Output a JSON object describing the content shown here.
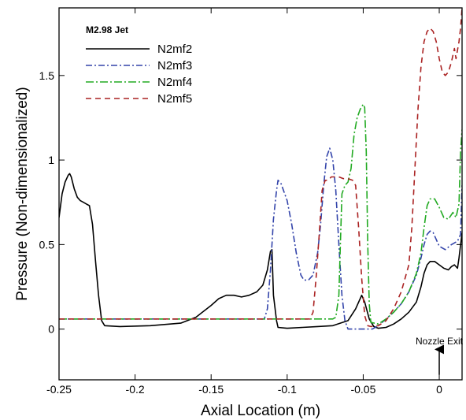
{
  "chart_data": {
    "type": "line",
    "title": "",
    "xlabel": "Axial Location (m)",
    "ylabel": "Pressure (Non-dimensionalized)",
    "xlim": [
      -0.25,
      0.015
    ],
    "ylim": [
      -0.3,
      1.9
    ],
    "grid": false,
    "legend_title": "M2.98 Jet",
    "legend_position": "top-left",
    "x_ticks": [
      {
        "v": -0.25,
        "label": "-0.25"
      },
      {
        "v": -0.2,
        "label": "-0.2"
      },
      {
        "v": -0.15,
        "label": "-0.15"
      },
      {
        "v": -0.1,
        "label": "-0.1"
      },
      {
        "v": -0.05,
        "label": "-0.05"
      },
      {
        "v": 0,
        "label": "0"
      }
    ],
    "y_ticks": [
      {
        "v": 0,
        "label": "0"
      },
      {
        "v": 0.5,
        "label": "0.5"
      },
      {
        "v": 1,
        "label": "1"
      },
      {
        "v": 1.5,
        "label": "1.5"
      }
    ],
    "annotation": {
      "text": "Nozzle Exit",
      "x": 0,
      "y_text": -0.09,
      "arrow_from_y": -0.27,
      "arrow_to_y": -0.12
    },
    "series": [
      {
        "name": "N2mf2",
        "color": "#000000",
        "dash": "",
        "points": [
          [
            -0.25,
            0.66
          ],
          [
            -0.248,
            0.8
          ],
          [
            -0.246,
            0.87
          ],
          [
            -0.244,
            0.91
          ],
          [
            -0.243,
            0.92
          ],
          [
            -0.242,
            0.9
          ],
          [
            -0.24,
            0.83
          ],
          [
            -0.238,
            0.78
          ],
          [
            -0.236,
            0.76
          ],
          [
            -0.234,
            0.75
          ],
          [
            -0.232,
            0.74
          ],
          [
            -0.23,
            0.73
          ],
          [
            -0.228,
            0.62
          ],
          [
            -0.226,
            0.4
          ],
          [
            -0.224,
            0.2
          ],
          [
            -0.222,
            0.05
          ],
          [
            -0.22,
            0.02
          ],
          [
            -0.21,
            0.015
          ],
          [
            -0.19,
            0.02
          ],
          [
            -0.17,
            0.035
          ],
          [
            -0.16,
            0.07
          ],
          [
            -0.15,
            0.14
          ],
          [
            -0.145,
            0.18
          ],
          [
            -0.14,
            0.2
          ],
          [
            -0.135,
            0.2
          ],
          [
            -0.13,
            0.19
          ],
          [
            -0.125,
            0.2
          ],
          [
            -0.12,
            0.22
          ],
          [
            -0.116,
            0.26
          ],
          [
            -0.113,
            0.35
          ],
          [
            -0.111,
            0.46
          ],
          [
            -0.11,
            0.47
          ],
          [
            -0.109,
            0.2
          ],
          [
            -0.107,
            0.05
          ],
          [
            -0.106,
            0.01
          ],
          [
            -0.1,
            0.005
          ],
          [
            -0.09,
            0.01
          ],
          [
            -0.08,
            0.015
          ],
          [
            -0.07,
            0.02
          ],
          [
            -0.06,
            0.05
          ],
          [
            -0.055,
            0.12
          ],
          [
            -0.051,
            0.2
          ],
          [
            -0.049,
            0.16
          ],
          [
            -0.046,
            0.06
          ],
          [
            -0.043,
            0.015
          ],
          [
            -0.04,
            0.005
          ],
          [
            -0.035,
            0.01
          ],
          [
            -0.03,
            0.03
          ],
          [
            -0.025,
            0.06
          ],
          [
            -0.02,
            0.1
          ],
          [
            -0.015,
            0.16
          ],
          [
            -0.012,
            0.25
          ],
          [
            -0.01,
            0.33
          ],
          [
            -0.008,
            0.38
          ],
          [
            -0.006,
            0.4
          ],
          [
            -0.003,
            0.4
          ],
          [
            0,
            0.38
          ],
          [
            0.003,
            0.36
          ],
          [
            0.006,
            0.35
          ],
          [
            0.008,
            0.37
          ],
          [
            0.01,
            0.38
          ],
          [
            0.012,
            0.36
          ],
          [
            0.013,
            0.42
          ],
          [
            0.015,
            0.57
          ]
        ]
      },
      {
        "name": "N2mf3",
        "color": "#3344aa",
        "dash": "8,3,2,3",
        "points": [
          [
            -0.25,
            0.06
          ],
          [
            -0.115,
            0.06
          ],
          [
            -0.113,
            0.12
          ],
          [
            -0.111,
            0.35
          ],
          [
            -0.109,
            0.65
          ],
          [
            -0.107,
            0.82
          ],
          [
            -0.106,
            0.88
          ],
          [
            -0.104,
            0.86
          ],
          [
            -0.1,
            0.76
          ],
          [
            -0.097,
            0.62
          ],
          [
            -0.094,
            0.45
          ],
          [
            -0.091,
            0.32
          ],
          [
            -0.089,
            0.29
          ],
          [
            -0.086,
            0.29
          ],
          [
            -0.083,
            0.32
          ],
          [
            -0.08,
            0.45
          ],
          [
            -0.078,
            0.62
          ],
          [
            -0.076,
            0.85
          ],
          [
            -0.074,
            1.02
          ],
          [
            -0.072,
            1.07
          ],
          [
            -0.07,
            1.0
          ],
          [
            -0.068,
            0.82
          ],
          [
            -0.066,
            0.5
          ],
          [
            -0.064,
            0.2
          ],
          [
            -0.062,
            0.05
          ],
          [
            -0.06,
            0.0
          ],
          [
            -0.05,
            0.0
          ],
          [
            -0.044,
            0.0
          ],
          [
            -0.04,
            0.02
          ],
          [
            -0.035,
            0.06
          ],
          [
            -0.03,
            0.1
          ],
          [
            -0.025,
            0.15
          ],
          [
            -0.02,
            0.22
          ],
          [
            -0.015,
            0.32
          ],
          [
            -0.012,
            0.42
          ],
          [
            -0.01,
            0.5
          ],
          [
            -0.008,
            0.56
          ],
          [
            -0.006,
            0.58
          ],
          [
            -0.004,
            0.57
          ],
          [
            -0.002,
            0.53
          ],
          [
            0,
            0.49
          ],
          [
            0.004,
            0.47
          ],
          [
            0.008,
            0.5
          ],
          [
            0.012,
            0.52
          ],
          [
            0.014,
            0.56
          ],
          [
            0.015,
            0.85
          ]
        ]
      },
      {
        "name": "N2mf4",
        "color": "#22aa22",
        "dash": "10,3,2,3",
        "points": [
          [
            -0.25,
            0.06
          ],
          [
            -0.07,
            0.06
          ],
          [
            -0.068,
            0.07
          ],
          [
            -0.066,
            0.2
          ],
          [
            -0.065,
            0.5
          ],
          [
            -0.064,
            0.8
          ],
          [
            -0.062,
            0.85
          ],
          [
            -0.06,
            0.87
          ],
          [
            -0.058,
            0.95
          ],
          [
            -0.056,
            1.15
          ],
          [
            -0.054,
            1.25
          ],
          [
            -0.052,
            1.3
          ],
          [
            -0.05,
            1.33
          ],
          [
            -0.049,
            1.31
          ],
          [
            -0.048,
            1.05
          ],
          [
            -0.047,
            0.5
          ],
          [
            -0.046,
            0.15
          ],
          [
            -0.045,
            0.04
          ],
          [
            -0.04,
            0.03
          ],
          [
            -0.035,
            0.06
          ],
          [
            -0.03,
            0.1
          ],
          [
            -0.025,
            0.15
          ],
          [
            -0.02,
            0.22
          ],
          [
            -0.015,
            0.33
          ],
          [
            -0.012,
            0.45
          ],
          [
            -0.01,
            0.6
          ],
          [
            -0.008,
            0.73
          ],
          [
            -0.006,
            0.77
          ],
          [
            -0.003,
            0.77
          ],
          [
            0,
            0.72
          ],
          [
            0.003,
            0.66
          ],
          [
            0.006,
            0.65
          ],
          [
            0.009,
            0.69
          ],
          [
            0.011,
            0.66
          ],
          [
            0.013,
            0.74
          ],
          [
            0.014,
            1.05
          ],
          [
            0.015,
            1.18
          ]
        ]
      },
      {
        "name": "N2mf5",
        "color": "#aa2222",
        "dash": "7,5",
        "points": [
          [
            -0.25,
            0.06
          ],
          [
            -0.085,
            0.06
          ],
          [
            -0.083,
            0.1
          ],
          [
            -0.081,
            0.3
          ],
          [
            -0.079,
            0.55
          ],
          [
            -0.077,
            0.82
          ],
          [
            -0.075,
            0.88
          ],
          [
            -0.073,
            0.88
          ],
          [
            -0.071,
            0.9
          ],
          [
            -0.069,
            0.9
          ],
          [
            -0.066,
            0.9
          ],
          [
            -0.063,
            0.89
          ],
          [
            -0.06,
            0.89
          ],
          [
            -0.057,
            0.88
          ],
          [
            -0.055,
            0.85
          ],
          [
            -0.053,
            0.6
          ],
          [
            -0.051,
            0.3
          ],
          [
            -0.049,
            0.08
          ],
          [
            -0.047,
            0.02
          ],
          [
            -0.045,
            0.015
          ],
          [
            -0.04,
            0.02
          ],
          [
            -0.035,
            0.05
          ],
          [
            -0.03,
            0.12
          ],
          [
            -0.025,
            0.22
          ],
          [
            -0.02,
            0.38
          ],
          [
            -0.018,
            0.6
          ],
          [
            -0.016,
            0.95
          ],
          [
            -0.014,
            1.3
          ],
          [
            -0.012,
            1.55
          ],
          [
            -0.01,
            1.7
          ],
          [
            -0.008,
            1.76
          ],
          [
            -0.006,
            1.78
          ],
          [
            -0.004,
            1.76
          ],
          [
            -0.002,
            1.7
          ],
          [
            0,
            1.6
          ],
          [
            0.002,
            1.52
          ],
          [
            0.004,
            1.5
          ],
          [
            0.006,
            1.52
          ],
          [
            0.008,
            1.58
          ],
          [
            0.01,
            1.66
          ],
          [
            0.011,
            1.6
          ],
          [
            0.013,
            1.7
          ],
          [
            0.014,
            1.78
          ],
          [
            0.015,
            1.9
          ]
        ]
      }
    ]
  }
}
